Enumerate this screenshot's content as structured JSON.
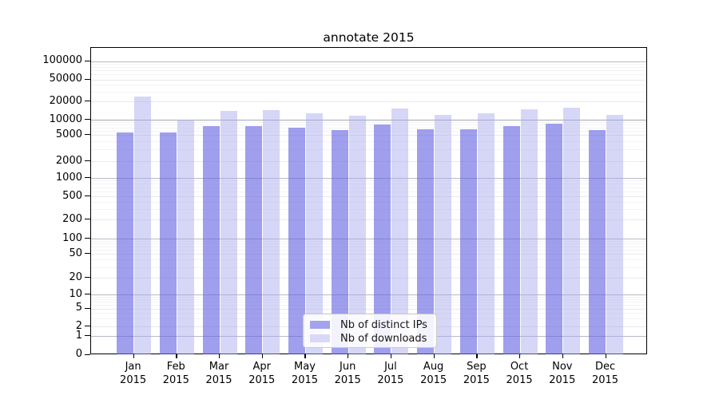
{
  "chart_data": {
    "type": "bar",
    "title": "annotate 2015",
    "categories": [
      "Jan",
      "Feb",
      "Mar",
      "Apr",
      "May",
      "Jun",
      "Jul",
      "Aug",
      "Sep",
      "Oct",
      "Nov",
      "Dec"
    ],
    "category_year": "2015",
    "series": [
      {
        "name": "Nb of distinct IPs",
        "color": "#a2a2ee",
        "values": [
          5600,
          5600,
          7600,
          7400,
          6900,
          6300,
          8100,
          6500,
          6400,
          7600,
          8300,
          6200
        ]
      },
      {
        "name": "Nb of downloads",
        "color": "#d9d9f7",
        "values": [
          24800,
          10100,
          13800,
          14400,
          12900,
          11800,
          15300,
          12000,
          12900,
          14900,
          15700,
          12100
        ]
      }
    ],
    "yscale": "symlog",
    "ylim": [
      0,
      165000
    ],
    "yticks": [
      0,
      1,
      2,
      5,
      10,
      20,
      50,
      100,
      200,
      500,
      1000,
      2000,
      5000,
      10000,
      20000,
      50000,
      100000
    ],
    "grid": true,
    "xlabel": "",
    "ylabel": "",
    "legend": {
      "position": "lower center",
      "entries": [
        "Nb of distinct IPs",
        "Nb of downloads"
      ]
    }
  }
}
